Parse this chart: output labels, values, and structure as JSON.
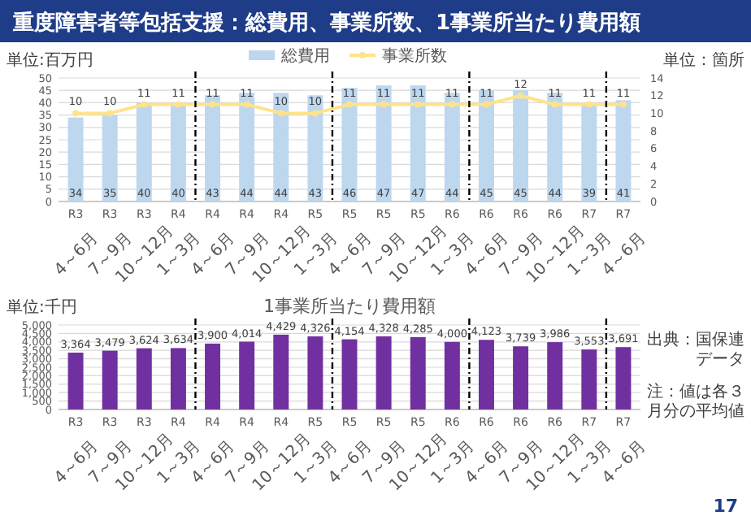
{
  "chart_data": [
    {
      "type": "bar",
      "title": "重度障害者等包括支援：総費用、事業所数、1事業所当たり費用額",
      "ylabel": "単位:百万円",
      "y2label": "単位：箇所",
      "categories": [
        "R3 4～6月",
        "R3 7～9月",
        "R3 10～12月",
        "R4 1～3月",
        "R4 4～6月",
        "R4 7～9月",
        "R4 10～12月",
        "R5 1～3月",
        "R5 4～6月",
        "R5 7～9月",
        "R5 10～12月",
        "R6 1～3月",
        "R6 4～6月",
        "R6 7～9月",
        "R6 10～12月",
        "R7 1～3月",
        "R7 4～6月"
      ],
      "series": [
        {
          "name": "総費用",
          "type": "bar",
          "color": "#bdd7ee",
          "values": [
            34,
            35,
            40,
            40,
            43,
            44,
            44,
            43,
            46,
            47,
            47,
            44,
            45,
            45,
            44,
            39,
            41
          ]
        },
        {
          "name": "事業所数",
          "type": "line",
          "axis": "y2",
          "color": "#ffe38a",
          "values": [
            10,
            10,
            11,
            11,
            11,
            11,
            10,
            10,
            11,
            11,
            11,
            11,
            11,
            12,
            11,
            11,
            11
          ]
        }
      ],
      "ylim": [
        0,
        50
      ],
      "yticks": [
        0,
        5,
        10,
        15,
        20,
        25,
        30,
        35,
        40,
        45,
        50
      ],
      "y2lim": [
        0,
        14
      ],
      "y2ticks": [
        0,
        2,
        4,
        6,
        8,
        10,
        12,
        14
      ],
      "grid": "y",
      "legend": "top",
      "marker": "circle",
      "data_labels": true
    },
    {
      "type": "bar",
      "title": "1事業所当たり費用額",
      "ylabel": "単位:千円",
      "categories": [
        "R3 4～6月",
        "R3 7～9月",
        "R3 10～12月",
        "R4 1～3月",
        "R4 4～6月",
        "R4 7～9月",
        "R4 10～12月",
        "R5 1～3月",
        "R5 4～6月",
        "R5 7～9月",
        "R5 10～12月",
        "R6 1～3月",
        "R6 4～6月",
        "R6 7～9月",
        "R6 10～12月",
        "R7 1～3月",
        "R7 4～6月"
      ],
      "values": [
        3364,
        3479,
        3624,
        3634,
        3900,
        4014,
        4429,
        4326,
        4154,
        4328,
        4285,
        4000,
        4123,
        3739,
        3986,
        3553,
        3691
      ],
      "color": "#7030a0",
      "ylim": [
        0,
        5000
      ],
      "yticks": [
        0,
        500,
        {
          "value": 1000,
          "label": "1,000"
        },
        {
          "value": 1500,
          "label": "1,500"
        },
        {
          "value": 2000,
          "label": "2,000"
        },
        {
          "value": 2500,
          "label": "2,500"
        },
        {
          "value": 3000,
          "label": "3,000"
        },
        {
          "value": 3500,
          "label": "3,500"
        },
        {
          "value": 4000,
          "label": "4,000"
        },
        {
          "value": 4500,
          "label": "4,500"
        },
        {
          "value": 5000,
          "label": "5,000"
        }
      ],
      "grid": "y",
      "value_labels": [
        "3,364",
        "3,479",
        "3,624",
        "3,634",
        "3,900",
        "4,014",
        "4,429",
        "4,326",
        "4,154",
        "4,328",
        "4,285",
        "4,000",
        "4,123",
        "3,739",
        "3,986",
        "3,553",
        "3,691"
      ],
      "annotations": [
        "出典：国保連データ",
        "注：値は各３月分の平均値",
        "17"
      ]
    }
  ]
}
